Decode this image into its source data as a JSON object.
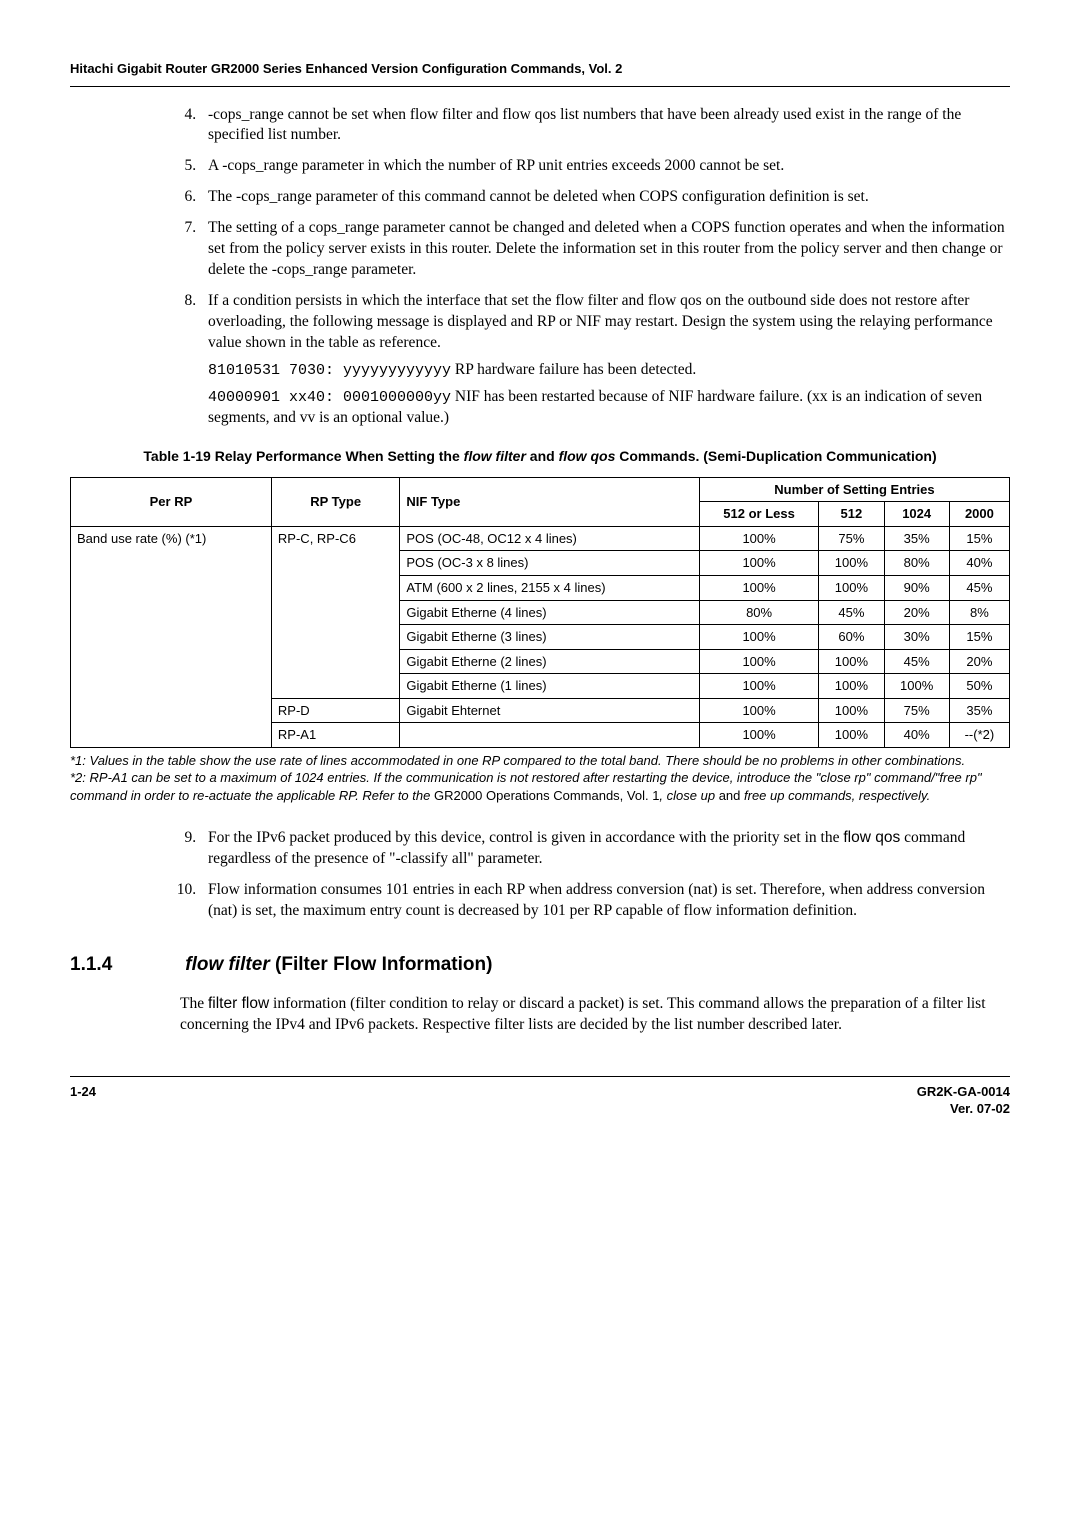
{
  "header": {
    "title": "Hitachi Gigabit Router GR2000 Series Enhanced Version Configuration Commands, Vol. 2"
  },
  "list": {
    "item4": "-cops_range cannot be set when flow filter and flow qos list numbers that have been already used exist in the range of the specified list number.",
    "item5": " A -cops_range parameter in which the number of RP unit entries exceeds 2000 cannot be set.",
    "item6": "The -cops_range parameter of this command cannot be deleted when COPS configuration definition is set.",
    "item7": "The setting of a cops_range parameter cannot be changed and deleted when a COPS function operates and when the information set from the policy server exists in this router. Delete the information set in this router from the policy server and then change or delete the -cops_range parameter.",
    "item8": "If a condition persists in which the interface that set the flow filter and flow qos on the outbound side does not restore after overloading, the following message is displayed and RP or NIF may restart. Design the system using the relaying performance value shown in the table as reference.",
    "code1a": "81010531 7030: yyyyyyyyyyyy",
    "code1b": "  RP hardware failure has been detected.",
    "code2a": "40000901 xx40: 0001000000yy",
    "code2b": "  NIF has been restarted because of NIF hardware failure. (xx is an indication of seven segments, and vv is an optional value.)",
    "item9a": "For the IPv6 packet produced by this device, control is given in accordance with the priority set in the ",
    "item9b": "flow qos",
    "item9c": " command regardless of the presence of \"-classify all\" parameter.",
    "item10": "Flow information consumes 101 entries in each RP when address conversion (nat) is set.  Therefore, when address conversion (nat) is set, the maximum entry count is decreased by 101 per RP capable of flow information definition."
  },
  "table": {
    "caption_a": "Table 1-19  Relay Performance When Setting the ",
    "caption_b": "flow filter",
    "caption_c": " and ",
    "caption_d": "flow qos",
    "caption_e": " Commands. (Semi-Duplication Communication)",
    "headers": {
      "h0": "Per RP",
      "h1": "RP Type",
      "h2": "NIF Type",
      "h3": "Number of Setting Entries",
      "h3a": "512 or Less",
      "h3b": "512",
      "h3c": "1024",
      "h3d": "2000"
    },
    "col0a": "Band use rate (%) (*1)",
    "col1a": "RP-C, RP-C6",
    "col1b": "RP-D",
    "col1c": "RP-A1",
    "rows": [
      {
        "nif": "POS (OC-48, OC12 x 4 lines)",
        "a": "100%",
        "b": "75%",
        "c": "35%",
        "d": "15%"
      },
      {
        "nif": "POS (OC-3 x 8 lines)",
        "a": "100%",
        "b": "100%",
        "c": "80%",
        "d": "40%"
      },
      {
        "nif": "ATM (600 x 2 lines, 2155 x 4 lines)",
        "a": "100%",
        "b": "100%",
        "c": "90%",
        "d": "45%"
      },
      {
        "nif": "Gigabit Etherne (4 lines)",
        "a": "80%",
        "b": "45%",
        "c": "20%",
        "d": "8%"
      },
      {
        "nif": "Gigabit Etherne (3 lines)",
        "a": "100%",
        "b": "60%",
        "c": "30%",
        "d": "15%"
      },
      {
        "nif": "Gigabit Etherne (2 lines)",
        "a": "100%",
        "b": "100%",
        "c": "45%",
        "d": "20%"
      },
      {
        "nif": "Gigabit Etherne (1 lines)",
        "a": "100%",
        "b": "100%",
        "c": "100%",
        "d": "50%"
      },
      {
        "nif": "Gigabit Ehternet",
        "a": "100%",
        "b": "100%",
        "c": "75%",
        "d": "35%"
      },
      {
        "nif": "",
        "a": "100%",
        "b": "100%",
        "c": "40%",
        "d": "--(*2)"
      }
    ]
  },
  "footnotes": {
    "f1": "*1: Values in the table show the use rate of lines accommodated in one RP compared to the total band. There should be no problems in other combinations.",
    "f2a": "*2: RP-A1 can be set to a maximum of 1024 entries. If the communication is not restored after restarting the device, introduce the \"close rp\" command/\"free rp\" command in order to re-actuate the applicable RP. Refer to the ",
    "f2b": "GR2000 Operations Commands, Vol. 1",
    "f2c": ", close up ",
    "f2d": "and",
    "f2e": " free up ",
    "f2f": "commands, respectively."
  },
  "section": {
    "num": "1.1.4",
    "title_i": "flow filter",
    "title_rest": " (Filter Flow Information)",
    "para_a": "The ",
    "para_b": "filter flow",
    "para_c": " information (filter condition to relay or discard a packet) is set. This command allows the preparation of a filter list concerning the IPv4 and IPv6 packets. Respective filter lists are decided by the list number described later."
  },
  "footer": {
    "left": "1-24",
    "right1": "GR2K-GA-0014",
    "right2": "Ver. 07-02"
  }
}
